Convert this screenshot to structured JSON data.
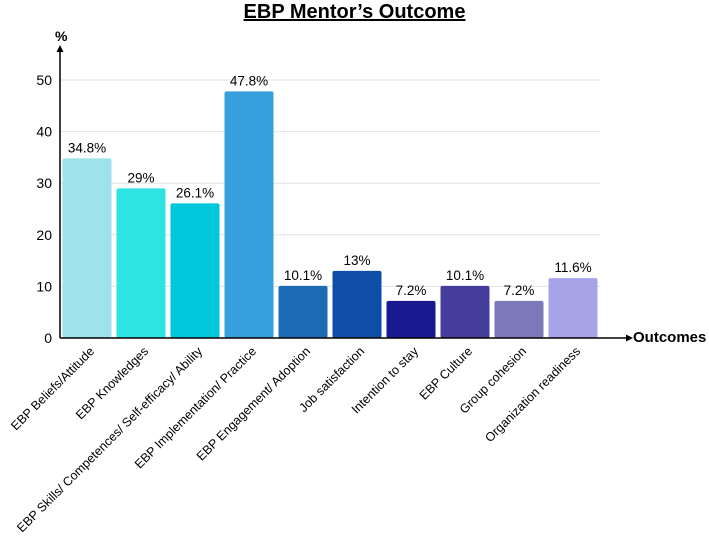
{
  "chart_data": {
    "type": "bar",
    "title": "EBP Mentor’s Outcome",
    "ylabel": "%",
    "xlabel": "Outcomes",
    "ylim": [
      0,
      55
    ],
    "yticks": [
      0,
      10,
      20,
      30,
      40,
      50
    ],
    "grid": true,
    "legend": "none",
    "categories": [
      "EBP Beliefs/Attitude",
      "EBP Knowledges",
      "EBP Skills/ Competences/ Self-efficacy/ Ability",
      "EBP Implementation/ Practice",
      "EBP Engagement/ Adoption",
      "Job satisfaction",
      "Intention to stay",
      "EBP Culture",
      "Group cohesion",
      "Organization readiness"
    ],
    "values": [
      34.8,
      29,
      26.1,
      47.8,
      10.1,
      13,
      7.2,
      10.1,
      7.2,
      11.6
    ],
    "data_labels": [
      "34.8%",
      "29%",
      "26.1%",
      "47.8%",
      "10.1%",
      "13%",
      "7.2%",
      "10.1%",
      "7.2%",
      "11.6%"
    ],
    "colors": [
      "#9ee2ec",
      "#2fe3e3",
      "#00c7da",
      "#36a0de",
      "#1b6cb5",
      "#0f4ea8",
      "#1a1a90",
      "#453d9b",
      "#7c79ba",
      "#a7a3e9"
    ]
  }
}
